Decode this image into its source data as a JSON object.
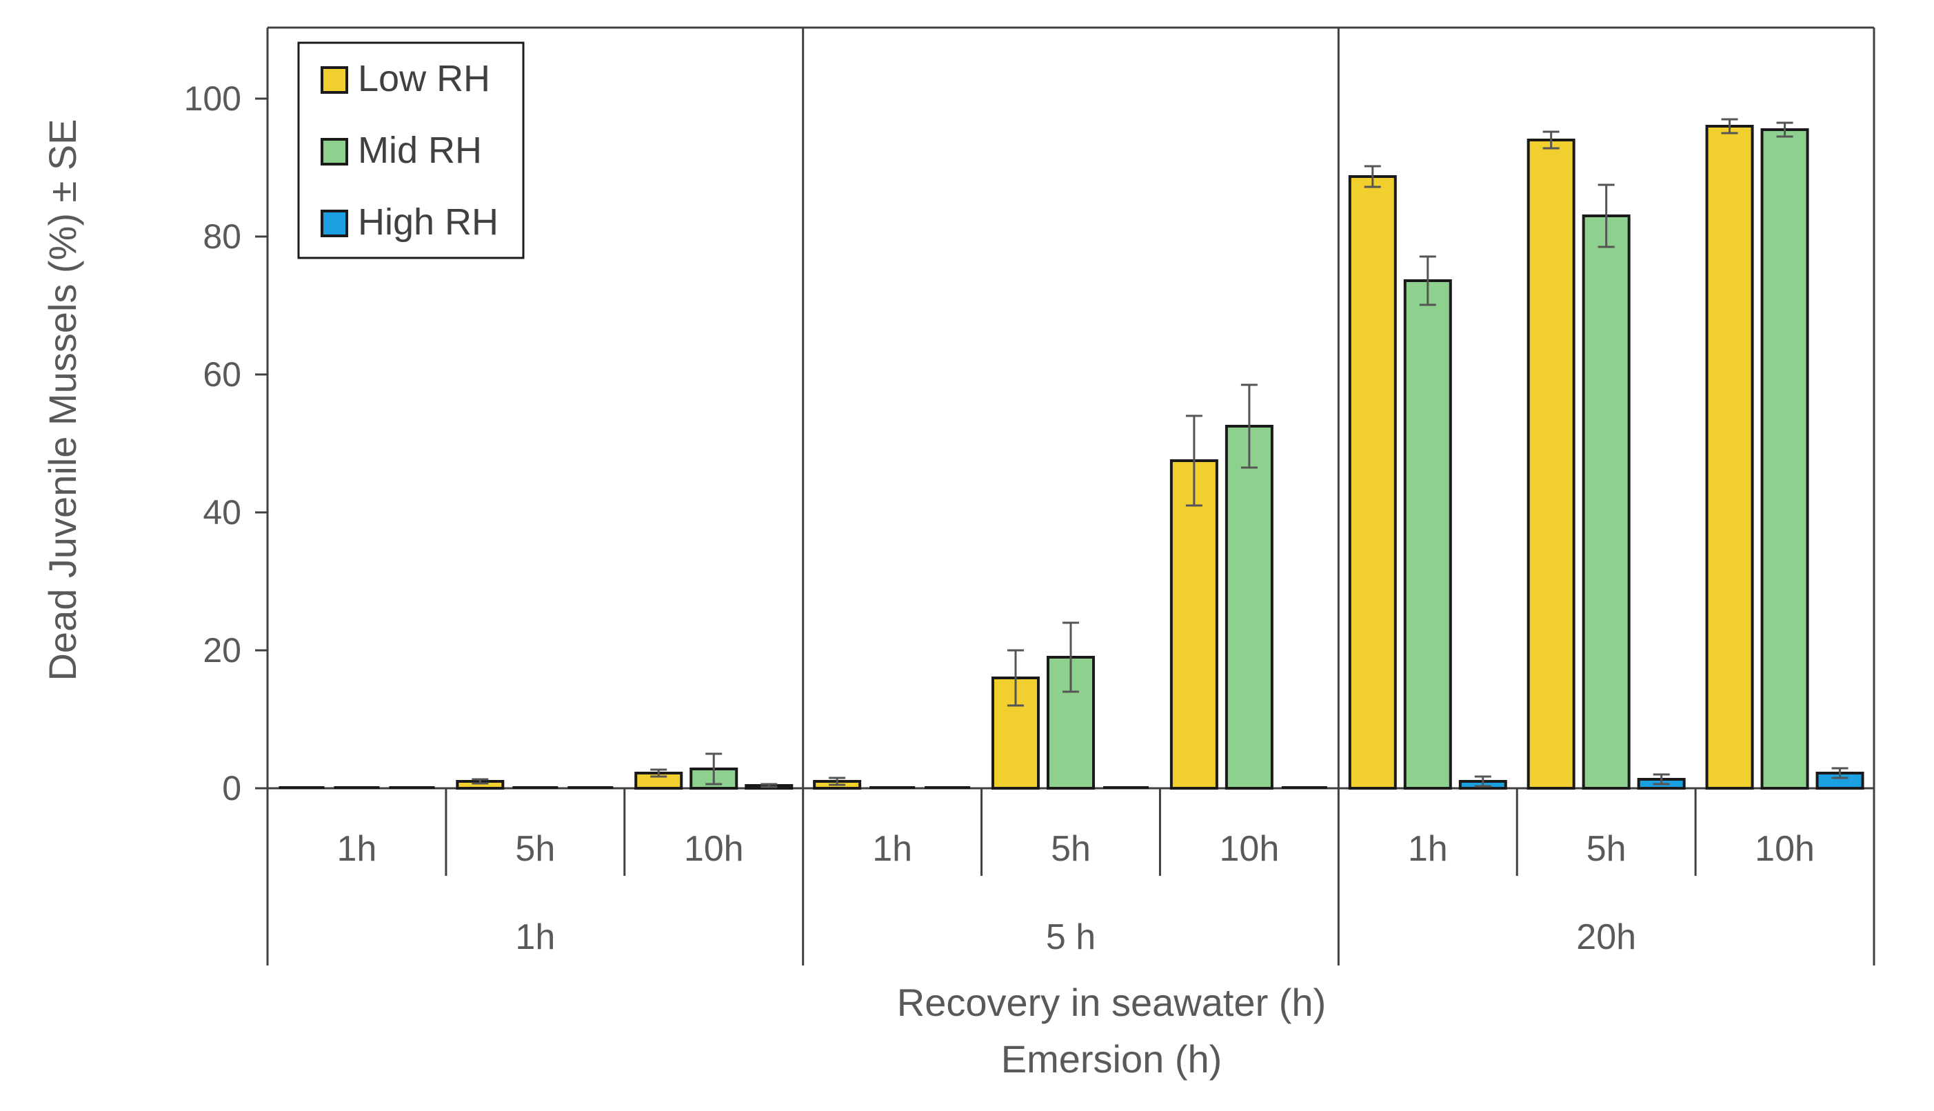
{
  "chart_data": {
    "type": "bar",
    "title": "",
    "ylabel": "Dead Juvenile Mussels (%) ± SE",
    "xlabel": "Recovery in seawater (h)",
    "xlabel2": "Emersion (h)",
    "ylim": [
      0,
      110
    ],
    "yticks": [
      "0",
      "20",
      "40",
      "60",
      "80",
      "100"
    ],
    "ytick_values": [
      0,
      20,
      40,
      60,
      80,
      100
    ],
    "groups": [
      {
        "label": "1h",
        "subgroups": [
          "1h",
          "5h",
          "10h"
        ]
      },
      {
        "label": "5 h",
        "subgroups": [
          "1h",
          "5h",
          "10h"
        ]
      },
      {
        "label": "20h",
        "subgroups": [
          "1h",
          "5h",
          "10h"
        ]
      }
    ],
    "legend_position": "top-left",
    "series": [
      {
        "name": "Low RH",
        "color": "#F0CF2E",
        "values": [
          0,
          1,
          2.2,
          1,
          16,
          47.5,
          88.7,
          94,
          96
        ],
        "errors": [
          0,
          0.3,
          0.5,
          0.5,
          4,
          6.5,
          1.5,
          1.2,
          1
        ]
      },
      {
        "name": "Mid RH",
        "color": "#8ED08E",
        "values": [
          0,
          0,
          2.8,
          0,
          19,
          52.5,
          73.6,
          83,
          95.5
        ],
        "errors": [
          0,
          0,
          2.2,
          0,
          5,
          6,
          3.5,
          4.5,
          1
        ]
      },
      {
        "name": "High RH",
        "color": "#1BA1E2",
        "values": [
          0,
          0,
          0.4,
          0,
          0,
          0,
          1,
          1.3,
          2.2
        ],
        "errors": [
          0,
          0,
          0.2,
          0,
          0,
          0,
          0.7,
          0.7,
          0.7
        ]
      }
    ]
  }
}
